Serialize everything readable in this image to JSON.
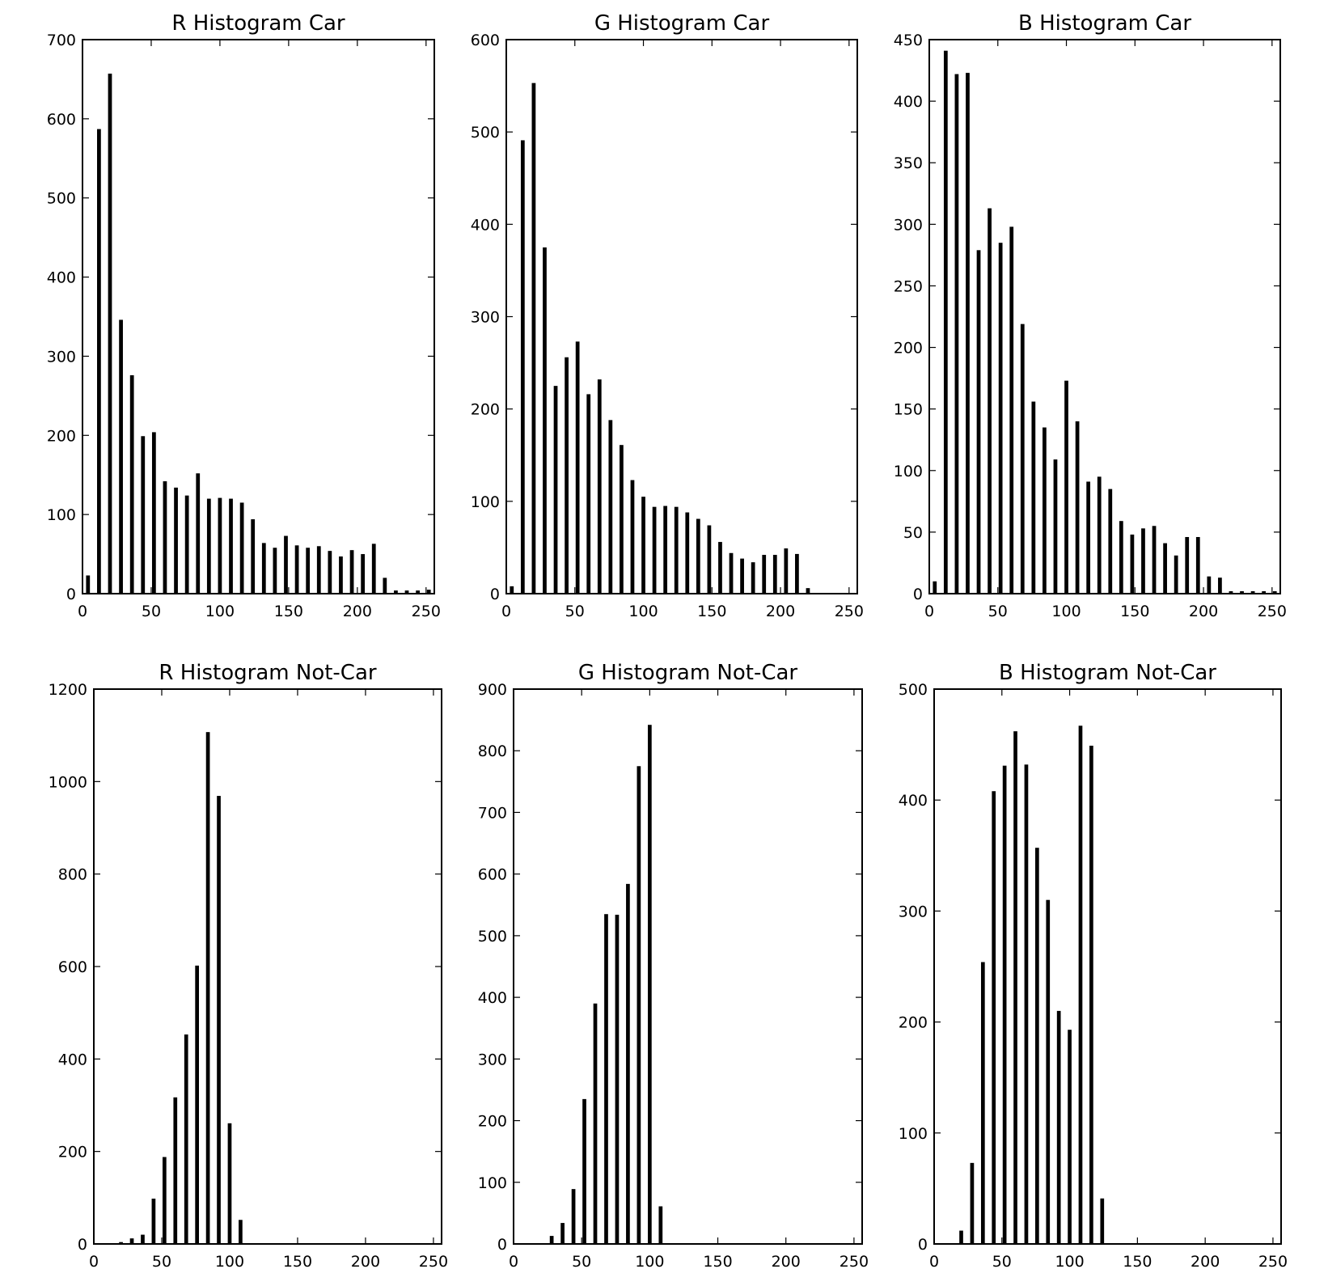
{
  "chart_data": [
    {
      "type": "bar",
      "title": "R Histogram Car",
      "xlim": [
        0,
        256
      ],
      "ylim": [
        0,
        700
      ],
      "xticks": [
        0,
        50,
        100,
        150,
        200,
        250
      ],
      "yticks": [
        0,
        100,
        200,
        300,
        400,
        500,
        600,
        700
      ],
      "bin_width": 8,
      "bar_width": 0.7,
      "x": [
        4,
        12,
        20,
        28,
        36,
        44,
        52,
        60,
        68,
        76,
        84,
        92,
        100,
        108,
        116,
        124,
        132,
        140,
        148,
        156,
        164,
        172,
        180,
        188,
        196,
        204,
        212,
        220,
        228,
        236,
        244,
        252
      ],
      "values": [
        23,
        587,
        657,
        346,
        276,
        199,
        204,
        142,
        134,
        124,
        152,
        120,
        121,
        120,
        115,
        94,
        64,
        58,
        73,
        61,
        58,
        60,
        54,
        47,
        55,
        50,
        63,
        20,
        4,
        4,
        4,
        5
      ]
    },
    {
      "type": "bar",
      "title": "G Histogram Car",
      "xlim": [
        0,
        256
      ],
      "ylim": [
        0,
        600
      ],
      "xticks": [
        0,
        50,
        100,
        150,
        200,
        250
      ],
      "yticks": [
        0,
        100,
        200,
        300,
        400,
        500,
        600
      ],
      "bin_width": 8,
      "bar_width": 0.7,
      "x": [
        4,
        12,
        20,
        28,
        36,
        44,
        52,
        60,
        68,
        76,
        84,
        92,
        100,
        108,
        116,
        124,
        132,
        140,
        148,
        156,
        164,
        172,
        180,
        188,
        196,
        204,
        212,
        220,
        228,
        236,
        244,
        252
      ],
      "values": [
        8,
        491,
        553,
        375,
        225,
        256,
        273,
        216,
        232,
        188,
        161,
        123,
        105,
        94,
        95,
        94,
        88,
        81,
        74,
        56,
        44,
        38,
        34,
        42,
        42,
        49,
        43,
        6,
        0,
        0,
        0,
        0
      ]
    },
    {
      "type": "bar",
      "title": "B Histogram Car",
      "xlim": [
        0,
        256
      ],
      "ylim": [
        0,
        450
      ],
      "xticks": [
        0,
        50,
        100,
        150,
        200,
        250
      ],
      "yticks": [
        0,
        50,
        100,
        150,
        200,
        250,
        300,
        350,
        400,
        450
      ],
      "bin_width": 8,
      "bar_width": 0.7,
      "x": [
        4,
        12,
        20,
        28,
        36,
        44,
        52,
        60,
        68,
        76,
        84,
        92,
        100,
        108,
        116,
        124,
        132,
        140,
        148,
        156,
        164,
        172,
        180,
        188,
        196,
        204,
        212,
        220,
        228,
        236,
        244,
        252
      ],
      "values": [
        10,
        441,
        422,
        423,
        279,
        313,
        285,
        298,
        219,
        156,
        135,
        109,
        173,
        140,
        91,
        95,
        85,
        59,
        48,
        53,
        55,
        41,
        31,
        46,
        46,
        14,
        13,
        2,
        2,
        2,
        2,
        2
      ]
    },
    {
      "type": "bar",
      "title": "R Histogram Not-Car",
      "xlim": [
        0,
        256
      ],
      "ylim": [
        0,
        1200
      ],
      "xticks": [
        0,
        50,
        100,
        150,
        200,
        250
      ],
      "yticks": [
        0,
        200,
        400,
        600,
        800,
        1000,
        1200
      ],
      "bin_width": 8,
      "bar_width": 0.7,
      "x": [
        4,
        12,
        20,
        28,
        36,
        44,
        52,
        60,
        68,
        76,
        84,
        92,
        100,
        108,
        116,
        124,
        132,
        140,
        148,
        156,
        164,
        172,
        180,
        188,
        196,
        204,
        212,
        220,
        228,
        236,
        244,
        252
      ],
      "values": [
        0,
        0,
        4,
        12,
        20,
        98,
        188,
        317,
        453,
        602,
        1107,
        969,
        261,
        52,
        0,
        0,
        0,
        0,
        0,
        0,
        0,
        0,
        0,
        0,
        0,
        0,
        0,
        0,
        0,
        0,
        0,
        0
      ]
    },
    {
      "type": "bar",
      "title": "G Histogram Not-Car",
      "xlim": [
        0,
        256
      ],
      "ylim": [
        0,
        900
      ],
      "xticks": [
        0,
        50,
        100,
        150,
        200,
        250
      ],
      "yticks": [
        0,
        100,
        200,
        300,
        400,
        500,
        600,
        700,
        800,
        900
      ],
      "bin_width": 8,
      "bar_width": 0.7,
      "x": [
        4,
        12,
        20,
        28,
        36,
        44,
        52,
        60,
        68,
        76,
        84,
        92,
        100,
        108,
        116,
        124,
        132,
        140,
        148,
        156,
        164,
        172,
        180,
        188,
        196,
        204,
        212,
        220,
        228,
        236,
        244,
        252
      ],
      "values": [
        0,
        0,
        1,
        13,
        34,
        89,
        235,
        390,
        535,
        534,
        584,
        775,
        842,
        61,
        0,
        0,
        0,
        0,
        0,
        0,
        0,
        0,
        0,
        0,
        0,
        0,
        0,
        0,
        0,
        0,
        0,
        0
      ]
    },
    {
      "type": "bar",
      "title": "B Histogram Not-Car",
      "xlim": [
        0,
        256
      ],
      "ylim": [
        0,
        500
      ],
      "xticks": [
        0,
        50,
        100,
        150,
        200,
        250
      ],
      "yticks": [
        0,
        100,
        200,
        300,
        400,
        500
      ],
      "bin_width": 8,
      "bar_width": 0.7,
      "x": [
        4,
        12,
        20,
        28,
        36,
        44,
        52,
        60,
        68,
        76,
        84,
        92,
        100,
        108,
        116,
        124,
        132,
        140,
        148,
        156,
        164,
        172,
        180,
        188,
        196,
        204,
        212,
        220,
        228,
        236,
        244,
        252
      ],
      "values": [
        0,
        0,
        12,
        73,
        254,
        408,
        431,
        462,
        432,
        357,
        310,
        210,
        193,
        467,
        449,
        41,
        0,
        0,
        0,
        0,
        0,
        0,
        0,
        0,
        0,
        0,
        0,
        0,
        0,
        0,
        0,
        0
      ]
    }
  ]
}
